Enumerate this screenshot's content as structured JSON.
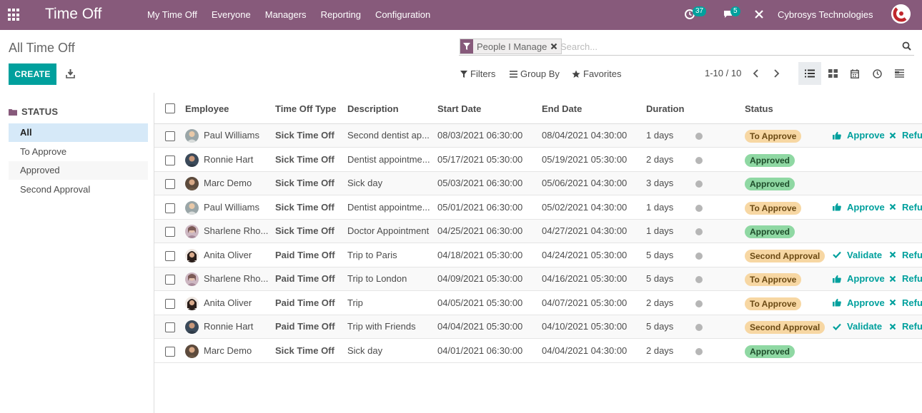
{
  "app": {
    "title": "Time Off"
  },
  "menu": [
    "My Time Off",
    "Everyone",
    "Managers",
    "Reporting",
    "Configuration"
  ],
  "systray": {
    "activity_count": "37",
    "message_count": "5",
    "company": "Cybrosys Technologies"
  },
  "breadcrumb": "All Time Off",
  "create_label": "CREATE",
  "search": {
    "facet_value": "People I Manage",
    "placeholder": "Search..."
  },
  "filters": {
    "filters_label": "Filters",
    "groupby_label": "Group By",
    "favorites_label": "Favorites"
  },
  "pager": "1-10 / 10",
  "sidebar": {
    "header": "STATUS",
    "items": [
      "All",
      "To Approve",
      "Approved",
      "Second Approval"
    ]
  },
  "table": {
    "headers": [
      "Employee",
      "Time Off Type",
      "Description",
      "Start Date",
      "End Date",
      "Duration",
      "Status"
    ],
    "rows": [
      {
        "employee": "Paul Williams",
        "type": "Sick Time Off",
        "description": "Second dentist ap...",
        "start": "08/03/2021 06:30:00",
        "end": "08/04/2021 04:30:00",
        "duration": "1 days",
        "status": "To Approve",
        "action": "Approve",
        "refuse": "Refus",
        "avatar": "paul"
      },
      {
        "employee": "Ronnie Hart",
        "type": "Sick Time Off",
        "description": "Dentist appointme...",
        "start": "05/17/2021 05:30:00",
        "end": "05/19/2021 05:30:00",
        "duration": "2 days",
        "status": "Approved",
        "action": "",
        "refuse": "",
        "avatar": "ronnie"
      },
      {
        "employee": "Marc Demo",
        "type": "Sick Time Off",
        "description": "Sick day",
        "start": "05/03/2021 06:30:00",
        "end": "05/06/2021 04:30:00",
        "duration": "3 days",
        "status": "Approved",
        "action": "",
        "refuse": "",
        "avatar": "marc"
      },
      {
        "employee": "Paul Williams",
        "type": "Sick Time Off",
        "description": "Dentist appointme...",
        "start": "05/01/2021 06:30:00",
        "end": "05/02/2021 04:30:00",
        "duration": "1 days",
        "status": "To Approve",
        "action": "Approve",
        "refuse": "Refus",
        "avatar": "paul"
      },
      {
        "employee": "Sharlene Rho...",
        "type": "Sick Time Off",
        "description": "Doctor Appointment",
        "start": "04/25/2021 06:30:00",
        "end": "04/27/2021 04:30:00",
        "duration": "1 days",
        "status": "Approved",
        "action": "",
        "refuse": "",
        "avatar": "sharlene"
      },
      {
        "employee": "Anita Oliver",
        "type": "Paid Time Off",
        "description": "Trip to Paris",
        "start": "04/18/2021 05:30:00",
        "end": "04/24/2021 05:30:00",
        "duration": "5 days",
        "status": "Second Approval",
        "action": "Validate",
        "refuse": "Refus",
        "avatar": "anita"
      },
      {
        "employee": "Sharlene Rho...",
        "type": "Paid Time Off",
        "description": "Trip to London",
        "start": "04/09/2021 05:30:00",
        "end": "04/16/2021 05:30:00",
        "duration": "5 days",
        "status": "To Approve",
        "action": "Approve",
        "refuse": "Refus",
        "avatar": "sharlene"
      },
      {
        "employee": "Anita Oliver",
        "type": "Paid Time Off",
        "description": "Trip",
        "start": "04/05/2021 05:30:00",
        "end": "04/07/2021 05:30:00",
        "duration": "2 days",
        "status": "To Approve",
        "action": "Approve",
        "refuse": "Refus",
        "avatar": "anita"
      },
      {
        "employee": "Ronnie Hart",
        "type": "Paid Time Off",
        "description": "Trip with Friends",
        "start": "04/04/2021 05:30:00",
        "end": "04/10/2021 05:30:00",
        "duration": "5 days",
        "status": "Second Approval",
        "action": "Validate",
        "refuse": "Refus",
        "avatar": "ronnie"
      },
      {
        "employee": "Marc Demo",
        "type": "Sick Time Off",
        "description": "Sick day",
        "start": "04/01/2021 06:30:00",
        "end": "04/04/2021 04:30:00",
        "duration": "2 days",
        "status": "Approved",
        "action": "",
        "refuse": "",
        "avatar": "marc"
      }
    ]
  },
  "colors": {
    "brand": "#875a7b",
    "accent": "#00a09d",
    "to_approve": "#f7d7a3",
    "approved": "#8fd8a3"
  }
}
